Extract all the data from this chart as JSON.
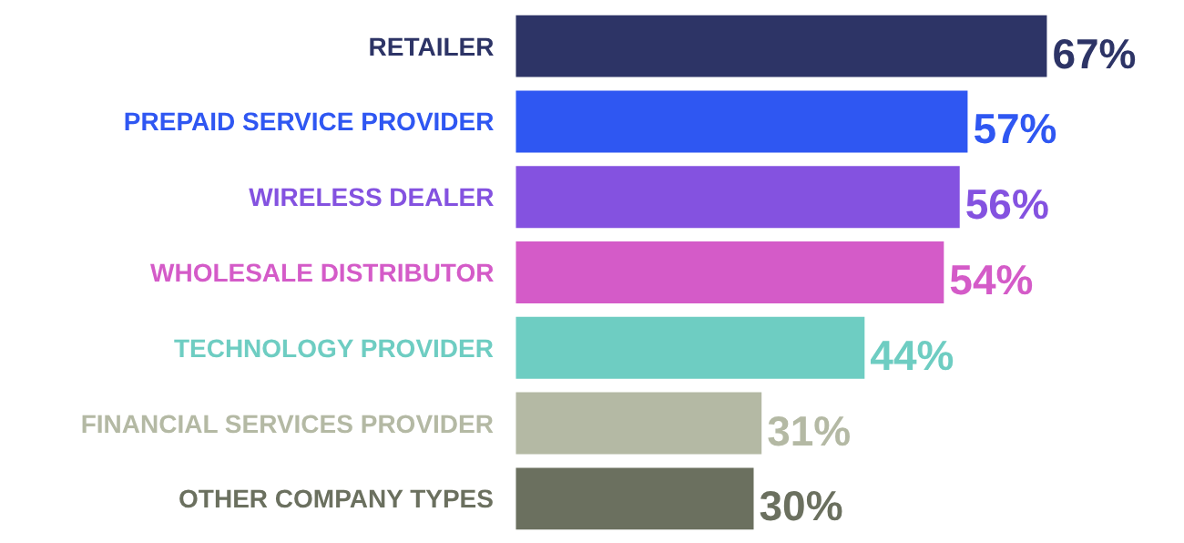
{
  "chart_data": {
    "type": "bar",
    "orientation": "horizontal",
    "categories": [
      "RETAILER",
      "PREPAID SERVICE PROVIDER",
      "WIRELESS DEALER",
      "WHOLESALE DISTRIBUTOR",
      "TECHNOLOGY PROVIDER",
      "FINANCIAL SERVICES PROVIDER",
      "OTHER COMPANY TYPES"
    ],
    "values": [
      67,
      57,
      56,
      54,
      44,
      31,
      30
    ],
    "value_labels": [
      "67%",
      "57%",
      "56%",
      "54%",
      "44%",
      "31%",
      "30%"
    ],
    "colors": [
      "#2d3466",
      "#2f57f2",
      "#8452e0",
      "#d45bc8",
      "#6ecdc2",
      "#b4b9a4",
      "#6b705f"
    ],
    "grid": false
  }
}
